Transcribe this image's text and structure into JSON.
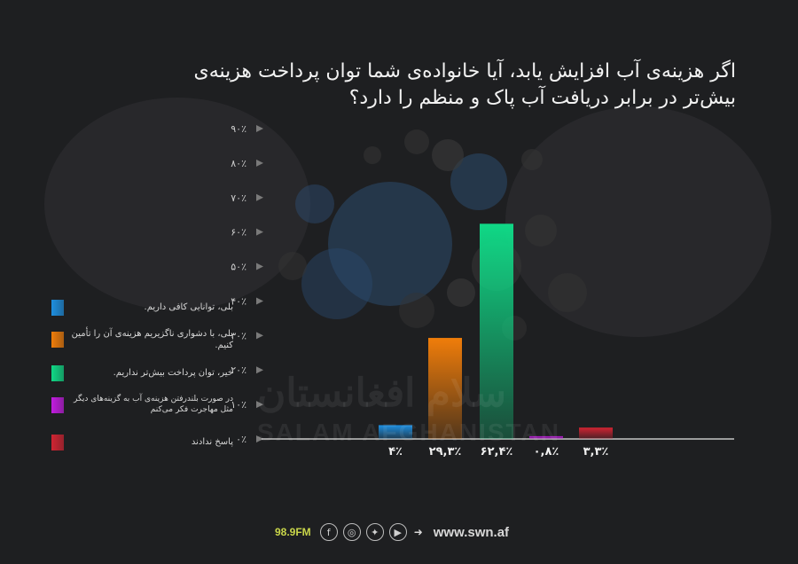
{
  "title_lines": [
    "اگر هزینه‌ی آب افزایش یابد، آیا خانواده‌ی شما توان پرداخت هزینه‌ی",
    "بیش‌تر در برابر دریافت آب پاک و منظم را دارد؟"
  ],
  "chart_data": {
    "type": "bar",
    "title": "اگر هزینه‌ی آب افزایش یابد، آیا خانواده‌ی شما توان پرداخت هزینه‌ی بیش‌تر در برابر دریافت آب پاک و منظم را دارد؟",
    "categories": [
      "بلی، توانایی کافی داریم.",
      "بلی، با دشواری ناگزیریم هزینه‌ی آن را تأمین کنیم.",
      "خیر، توان پرداخت بیش‌تر نداریم.",
      "در صورت بلندرفتن هزینه‌ی آب به گزینه‌های دیگر مثل مهاجرت فکر می‌کنم",
      "پاسخ ندادند"
    ],
    "values": [
      4,
      29.3,
      62.4,
      0.8,
      3.3
    ],
    "value_labels": [
      "۴٪",
      "۲۹,۳٪",
      "۶۲,۴٪",
      "۰,۸٪",
      "۳,۳٪"
    ],
    "colors": [
      "#1e8fe0",
      "#f07d0a",
      "#10d886",
      "#c21ce0",
      "#d12432"
    ],
    "ylim": [
      0,
      90
    ],
    "yticks": [
      0,
      10,
      20,
      30,
      40,
      50,
      60,
      70,
      80,
      90
    ],
    "ytick_labels": [
      "۰٪",
      "۱۰٪",
      "۲۰٪",
      "۳۰٪",
      "۴۰٪",
      "۵۰٪",
      "۶۰٪",
      "۷۰٪",
      "۸۰٪",
      "۹۰٪"
    ],
    "xlabel": "",
    "ylabel": "",
    "grid": false,
    "legend_position": "left"
  },
  "legend": [
    {
      "label": "بلی، توانایی کافی داریم.",
      "color": "#1e8fe0"
    },
    {
      "label": "بلی، با دشواری ناگزیریم هزینه‌ی آن را تأمین کنیم.",
      "color": "#f07d0a"
    },
    {
      "label": "خیر، توان پرداخت بیش‌تر نداریم.",
      "color": "#10d886"
    },
    {
      "label": "در صورت بلندرفتن هزینه‌ی آب به گزینه‌های دیگر مثل مهاجرت فکر می‌کنم",
      "color": "#c21ce0"
    },
    {
      "label": "پاسخ ندادند",
      "color": "#d12432"
    }
  ],
  "watermark": {
    "line1": "سلام افغانستان",
    "line2": "SALAM AFGHANISTAN"
  },
  "footer": {
    "radio": "98.9FM",
    "icons": [
      "facebook-icon",
      "instagram-icon",
      "twitter-icon",
      "youtube-icon"
    ],
    "website": "www.swn.af"
  }
}
